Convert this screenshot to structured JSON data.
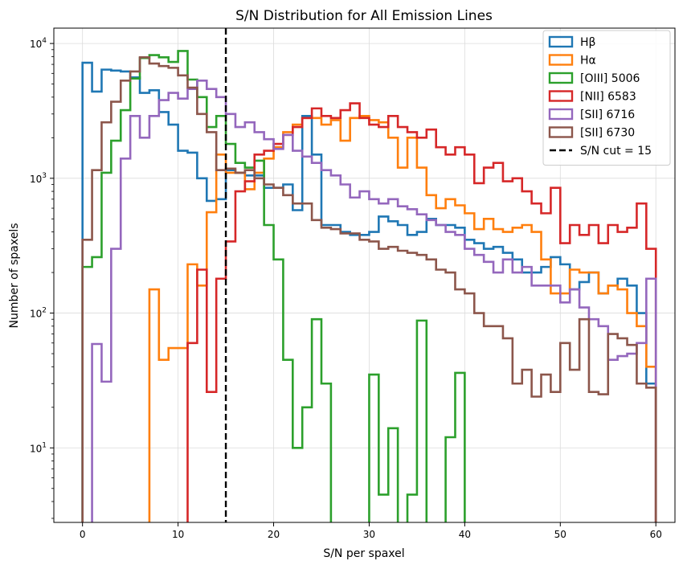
{
  "chart_data": {
    "type": "histogram-step",
    "title": "S/N Distribution for All Emission Lines",
    "xlabel": "S/N per spaxel",
    "ylabel": "Number of spaxels",
    "y_scale": "log",
    "xlim": [
      -3,
      62
    ],
    "ylim": [
      2.8,
      13000
    ],
    "x_ticks": [
      0,
      10,
      20,
      30,
      40,
      50,
      60
    ],
    "y_ticks": [
      {
        "value": 10,
        "label": "10",
        "exp": "1"
      },
      {
        "value": 100,
        "label": "10",
        "exp": "2"
      },
      {
        "value": 1000,
        "label": "10",
        "exp": "3"
      },
      {
        "value": 10000,
        "label": "10",
        "exp": "4"
      }
    ],
    "grid": true,
    "legend_position": "top-right",
    "bin_start": 0,
    "bin_width": 1,
    "series": [
      {
        "name": "Hβ",
        "color": "#1f77b4",
        "values": [
          7200,
          4400,
          6400,
          6300,
          6200,
          5600,
          4300,
          4500,
          3100,
          2500,
          1600,
          1550,
          1000,
          680,
          700,
          1150,
          1100,
          1050,
          1050,
          850,
          850,
          900,
          580,
          2900,
          1500,
          450,
          450,
          400,
          380,
          380,
          400,
          520,
          480,
          450,
          380,
          400,
          500,
          450,
          450,
          430,
          350,
          330,
          300,
          310,
          280,
          250,
          200,
          200,
          220,
          260,
          230,
          150,
          170,
          200,
          140,
          160,
          180,
          160,
          100,
          30
        ]
      },
      {
        "name": "Hα",
        "color": "#ff7f0e",
        "values": [
          0,
          0,
          0,
          0,
          0,
          0,
          0,
          150,
          45,
          55,
          55,
          230,
          160,
          560,
          1500,
          1100,
          1100,
          830,
          1100,
          1400,
          1700,
          2200,
          2500,
          2800,
          2800,
          2500,
          2700,
          1900,
          2800,
          2900,
          2700,
          2600,
          2000,
          1200,
          2000,
          1200,
          750,
          600,
          700,
          630,
          550,
          420,
          500,
          420,
          400,
          430,
          450,
          400,
          250,
          140,
          140,
          210,
          200,
          200,
          140,
          160,
          150,
          100,
          80,
          40
        ]
      },
      {
        "name": "[OIII] 5006",
        "color": "#2ca02c",
        "values": [
          220,
          260,
          1100,
          1900,
          3200,
          5500,
          7800,
          8200,
          7900,
          7300,
          8800,
          5400,
          4000,
          2400,
          2900,
          1800,
          1300,
          1200,
          1350,
          450,
          250,
          45,
          10,
          20,
          90,
          30,
          0,
          0,
          0,
          0,
          35,
          4.5,
          14,
          0,
          4.5,
          88,
          0,
          0,
          12,
          36,
          0,
          0,
          0,
          0,
          0,
          0,
          0,
          0,
          0,
          0,
          0,
          0,
          0,
          0,
          0,
          0,
          0,
          0,
          0,
          0
        ]
      },
      {
        "name": "[NII] 6583",
        "color": "#d62728",
        "values": [
          0,
          0,
          0,
          0,
          0,
          0,
          0,
          0,
          0,
          0,
          0,
          60,
          210,
          26,
          180,
          340,
          800,
          950,
          1500,
          1600,
          1800,
          2100,
          2400,
          2800,
          3300,
          2900,
          2800,
          3200,
          3600,
          2800,
          2500,
          2400,
          2900,
          2400,
          2200,
          2000,
          2300,
          1700,
          1500,
          1700,
          1500,
          920,
          1200,
          1300,
          950,
          1000,
          800,
          650,
          550,
          850,
          330,
          450,
          380,
          450,
          330,
          450,
          400,
          430,
          650,
          300
        ]
      },
      {
        "name": "[SII] 6716",
        "color": "#9467bd",
        "values": [
          0,
          59,
          31,
          300,
          1400,
          2900,
          2000,
          2900,
          3800,
          4300,
          3900,
          4600,
          5300,
          4600,
          4000,
          3000,
          2400,
          2600,
          2200,
          1950,
          1650,
          2100,
          1600,
          1450,
          1300,
          1150,
          1050,
          900,
          720,
          800,
          700,
          650,
          700,
          620,
          590,
          540,
          490,
          450,
          400,
          380,
          300,
          270,
          240,
          200,
          250,
          200,
          220,
          160,
          160,
          160,
          120,
          150,
          110,
          90,
          80,
          45,
          48,
          50,
          60,
          180
        ]
      },
      {
        "name": "[SII] 6730",
        "color": "#8c564b",
        "values": [
          350,
          1150,
          2600,
          3700,
          5300,
          6200,
          7900,
          7100,
          6800,
          6600,
          5800,
          4700,
          3000,
          2200,
          1150,
          1180,
          1100,
          1150,
          1000,
          900,
          850,
          750,
          650,
          650,
          490,
          430,
          420,
          390,
          390,
          350,
          340,
          300,
          310,
          290,
          280,
          270,
          250,
          210,
          200,
          150,
          140,
          100,
          80,
          80,
          65,
          30,
          38,
          24,
          35,
          26,
          60,
          38,
          90,
          26,
          25,
          70,
          65,
          58,
          30,
          28
        ]
      }
    ],
    "vline": {
      "x": 15,
      "label": "S/N cut = 15",
      "color": "#000000",
      "style": "dashed"
    }
  }
}
